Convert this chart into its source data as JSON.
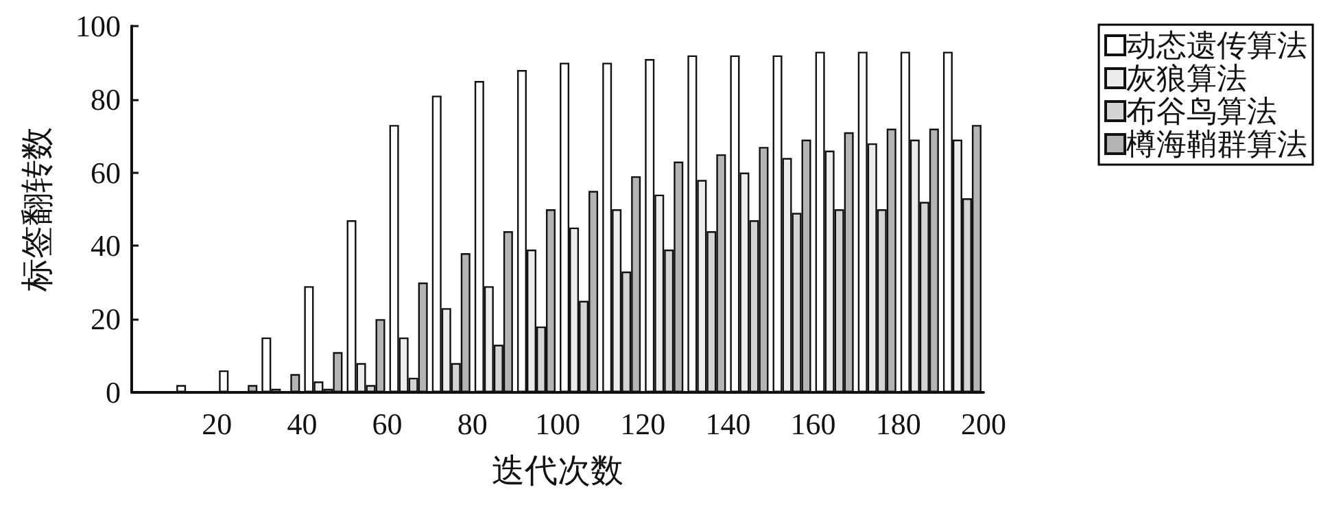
{
  "chart_data": {
    "type": "bar",
    "xlabel": "迭代次数",
    "ylabel": "标签翻转数",
    "x": [
      15,
      25,
      35,
      45,
      55,
      65,
      75,
      85,
      95,
      105,
      115,
      125,
      135,
      145,
      155,
      165,
      175,
      185,
      195
    ],
    "series": [
      {
        "name": "动态遗传算法",
        "color": "#ffffff",
        "values": [
          2,
          6,
          15,
          29,
          47,
          73,
          81,
          85,
          88,
          90,
          90,
          91,
          92,
          92,
          92,
          93,
          93,
          93,
          93
        ]
      },
      {
        "name": "灰狼算法",
        "color": "#ececec",
        "values": [
          0,
          0,
          1,
          3,
          8,
          15,
          23,
          29,
          39,
          45,
          50,
          54,
          58,
          60,
          64,
          66,
          68,
          69,
          69
        ]
      },
      {
        "name": "布谷鸟算法",
        "color": "#d4d4d4",
        "values": [
          0,
          0,
          0,
          1,
          2,
          4,
          8,
          13,
          18,
          25,
          33,
          39,
          44,
          47,
          49,
          50,
          50,
          52,
          53
        ]
      },
      {
        "name": "樽海鞘群算法",
        "color": "#b4b4b4",
        "values": [
          0,
          2,
          5,
          11,
          20,
          30,
          38,
          44,
          50,
          55,
          59,
          63,
          65,
          67,
          69,
          71,
          72,
          72,
          73
        ]
      }
    ],
    "xlim": [
      0,
      200
    ],
    "xticks": [
      20,
      40,
      60,
      80,
      100,
      120,
      140,
      160,
      180,
      200
    ],
    "ylim": [
      0,
      100
    ],
    "yticks": [
      0,
      20,
      40,
      60,
      80,
      100
    ],
    "grid": false,
    "legend": "top right"
  }
}
